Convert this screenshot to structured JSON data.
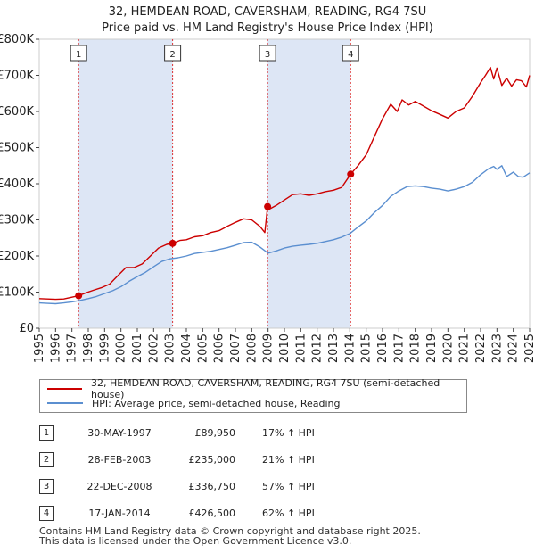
{
  "header": {
    "title": "32, HEMDEAN ROAD, CAVERSHAM, READING, RG4 7SU",
    "subtitle": "Price paid vs. HM Land Registry's House Price Index (HPI)"
  },
  "colors": {
    "property": "#cc0000",
    "hpi": "#5b8fd0",
    "shade": "#dde6f5",
    "marker": "#cc0000",
    "vline": "#dd3333"
  },
  "chart_data": {
    "type": "line",
    "xlim": [
      1995,
      2025
    ],
    "ylim": [
      0,
      800000
    ],
    "y_ticks": [
      {
        "value": 0,
        "label": "£0"
      },
      {
        "value": 100000,
        "label": "£100K"
      },
      {
        "value": 200000,
        "label": "£200K"
      },
      {
        "value": 300000,
        "label": "£300K"
      },
      {
        "value": 400000,
        "label": "£400K"
      },
      {
        "value": 500000,
        "label": "£500K"
      },
      {
        "value": 600000,
        "label": "£600K"
      },
      {
        "value": 700000,
        "label": "£700K"
      },
      {
        "value": 800000,
        "label": "£800K"
      }
    ],
    "x_ticks": [
      "1995",
      "1996",
      "1997",
      "1998",
      "1999",
      "2000",
      "2001",
      "2002",
      "2003",
      "2004",
      "2005",
      "2006",
      "2007",
      "2008",
      "2009",
      "2010",
      "2011",
      "2012",
      "2013",
      "2014",
      "2015",
      "2016",
      "2017",
      "2018",
      "2019",
      "2020",
      "2021",
      "2022",
      "2023",
      "2024",
      "2025"
    ],
    "series": [
      {
        "name": "32, HEMDEAN ROAD, CAVERSHAM, READING, RG4 7SU (semi-detached house)",
        "x": [
          1995.0,
          1995.5,
          1996.0,
          1996.5,
          1997.0,
          1997.41,
          1997.8,
          1998.3,
          1998.8,
          1999.3,
          1999.8,
          2000.3,
          2000.8,
          2001.3,
          2001.8,
          2002.3,
          2002.8,
          2003.16,
          2003.6,
          2004.0,
          2004.5,
          2005.0,
          2005.5,
          2006.0,
          2006.5,
          2007.0,
          2007.5,
          2008.0,
          2008.5,
          2008.8,
          2008.97,
          2009.0,
          2009.5,
          2010.0,
          2010.5,
          2011.0,
          2011.5,
          2012.0,
          2012.5,
          2013.0,
          2013.5,
          2014.05,
          2014.5,
          2015.0,
          2015.5,
          2016.0,
          2016.5,
          2016.9,
          2017.2,
          2017.6,
          2018.0,
          2018.5,
          2019.0,
          2019.5,
          2020.0,
          2020.5,
          2021.0,
          2021.5,
          2022.0,
          2022.3,
          2022.6,
          2022.8,
          2023.0,
          2023.3,
          2023.6,
          2023.9,
          2024.2,
          2024.5,
          2024.8,
          2025.0
        ],
        "values": [
          82000,
          81000,
          80000,
          81000,
          86000,
          89950,
          97000,
          105000,
          112000,
          122000,
          145000,
          168000,
          168000,
          178000,
          200000,
          222000,
          232000,
          235000,
          243000,
          245000,
          253000,
          256000,
          265000,
          270000,
          282000,
          293000,
          303000,
          300000,
          282000,
          265000,
          336750,
          328000,
          340000,
          355000,
          370000,
          372000,
          368000,
          372000,
          378000,
          382000,
          390000,
          426500,
          450000,
          480000,
          530000,
          580000,
          620000,
          600000,
          632000,
          618000,
          628000,
          615000,
          602000,
          592000,
          582000,
          600000,
          610000,
          642000,
          680000,
          700000,
          722000,
          690000,
          720000,
          672000,
          692000,
          670000,
          688000,
          685000,
          668000,
          700000
        ]
      },
      {
        "name": "HPI: Average price, semi-detached house, Reading",
        "x": [
          1995.0,
          1995.5,
          1996.0,
          1996.5,
          1997.0,
          1997.5,
          1998.0,
          1998.5,
          1999.0,
          1999.5,
          2000.0,
          2000.5,
          2001.0,
          2001.5,
          2002.0,
          2002.5,
          2003.0,
          2003.5,
          2004.0,
          2004.5,
          2005.0,
          2005.5,
          2006.0,
          2006.5,
          2007.0,
          2007.5,
          2008.0,
          2008.5,
          2009.0,
          2009.5,
          2010.0,
          2010.5,
          2011.0,
          2011.5,
          2012.0,
          2012.5,
          2013.0,
          2013.5,
          2014.0,
          2014.5,
          2015.0,
          2015.5,
          2016.0,
          2016.5,
          2017.0,
          2017.5,
          2018.0,
          2018.5,
          2019.0,
          2019.5,
          2020.0,
          2020.5,
          2021.0,
          2021.5,
          2022.0,
          2022.5,
          2022.8,
          2023.0,
          2023.3,
          2023.6,
          2024.0,
          2024.3,
          2024.6,
          2025.0
        ],
        "values": [
          70000,
          69000,
          68000,
          70000,
          73000,
          77000,
          82000,
          88000,
          96000,
          104000,
          115000,
          130000,
          143000,
          155000,
          170000,
          185000,
          192000,
          195000,
          200000,
          207000,
          210000,
          213000,
          218000,
          223000,
          230000,
          237000,
          238000,
          225000,
          208000,
          214000,
          222000,
          227000,
          230000,
          232000,
          235000,
          240000,
          245000,
          252000,
          262000,
          280000,
          297000,
          320000,
          340000,
          365000,
          380000,
          392000,
          394000,
          392000,
          388000,
          385000,
          380000,
          385000,
          392000,
          404000,
          425000,
          442000,
          448000,
          440000,
          450000,
          420000,
          432000,
          420000,
          418000,
          430000
        ]
      }
    ],
    "sales": [
      {
        "num": "1",
        "x": 1997.41,
        "price": 89950,
        "date": "30-MAY-1997",
        "price_label": "£89,950",
        "hpi_label": "17% ↑ HPI"
      },
      {
        "num": "2",
        "x": 2003.16,
        "price": 235000,
        "date": "28-FEB-2003",
        "price_label": "£235,000",
        "hpi_label": "21% ↑ HPI"
      },
      {
        "num": "3",
        "x": 2008.97,
        "price": 336750,
        "date": "22-DEC-2008",
        "price_label": "£336,750",
        "hpi_label": "57% ↑ HPI"
      },
      {
        "num": "4",
        "x": 2014.05,
        "price": 426500,
        "date": "17-JAN-2014",
        "price_label": "£426,500",
        "hpi_label": "62% ↑ HPI"
      }
    ]
  },
  "legend": {
    "property_label": "32, HEMDEAN ROAD, CAVERSHAM, READING, RG4 7SU (semi-detached house)",
    "hpi_label": "HPI: Average price, semi-detached house, Reading"
  },
  "footer": {
    "line1": "Contains HM Land Registry data © Crown copyright and database right 2025.",
    "line2": "This data is licensed under the Open Government Licence v3.0."
  }
}
